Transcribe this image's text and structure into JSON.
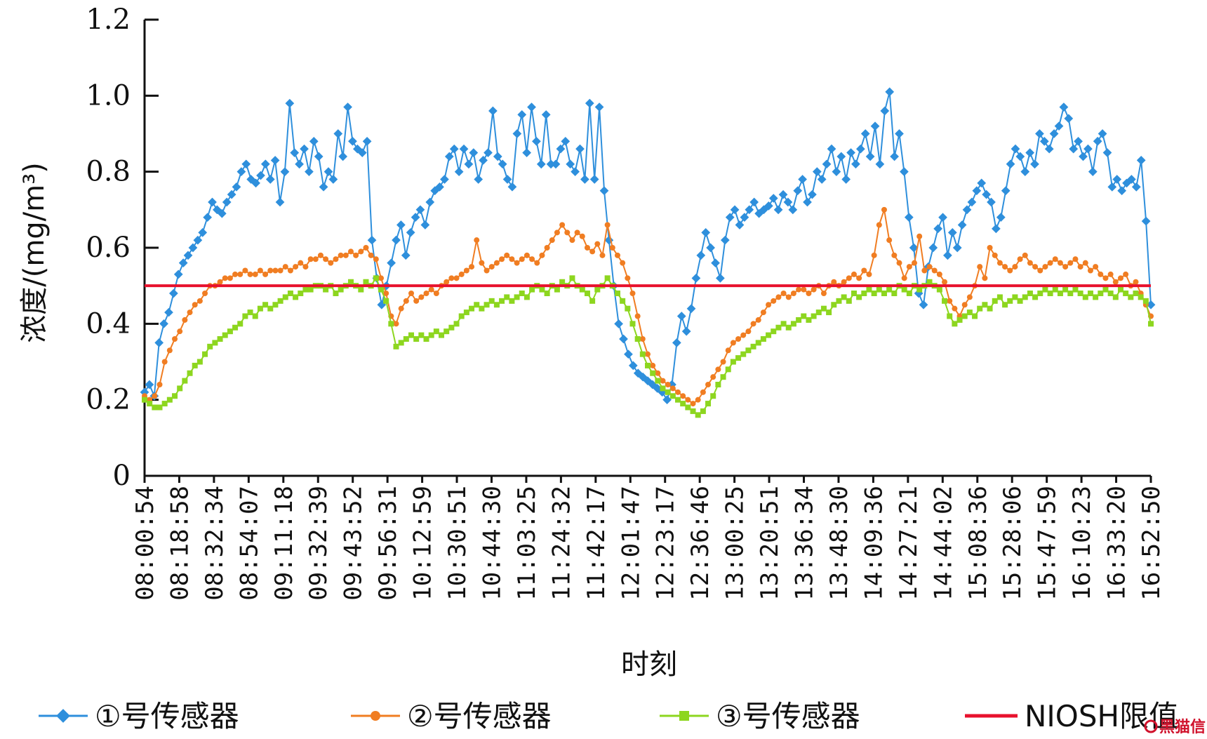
{
  "chart_data": {
    "type": "line",
    "xlabel": "时刻",
    "ylabel": "浓度/(mg/m³)",
    "ylim": [
      0,
      1.2
    ],
    "yticks": [
      "0",
      "0.2",
      "0.4",
      "0.6",
      "0.8",
      "1.0",
      "1.2"
    ],
    "x_tick_labels": [
      "08:00:54",
      "08:18:58",
      "08:32:34",
      "08:54:07",
      "09:11:18",
      "09:32:39",
      "09:43:52",
      "09:56:31",
      "10:12:59",
      "10:30:51",
      "10:44:30",
      "11:03:25",
      "11:24:32",
      "11:42:17",
      "12:01:47",
      "12:23:17",
      "12:36:46",
      "13:00:25",
      "13:20:51",
      "13:36:34",
      "13:48:30",
      "14:09:36",
      "14:27:21",
      "14:44:02",
      "15:08:36",
      "15:28:06",
      "15:47:59",
      "16:10:23",
      "16:33:20",
      "16:52:50"
    ],
    "grid": false,
    "legend_position": "bottom",
    "threshold": {
      "name": "NIOSH限值",
      "value": 0.5,
      "color": "#e8112d"
    },
    "series": [
      {
        "name": "①号传感器",
        "color": "#2e8fdc",
        "marker": "diamond",
        "values": [
          0.22,
          0.24,
          0.21,
          0.35,
          0.4,
          0.43,
          0.48,
          0.53,
          0.56,
          0.58,
          0.6,
          0.62,
          0.64,
          0.68,
          0.72,
          0.7,
          0.69,
          0.72,
          0.74,
          0.76,
          0.8,
          0.82,
          0.78,
          0.77,
          0.79,
          0.82,
          0.78,
          0.83,
          0.72,
          0.8,
          0.98,
          0.85,
          0.82,
          0.86,
          0.8,
          0.88,
          0.84,
          0.76,
          0.8,
          0.78,
          0.9,
          0.84,
          0.97,
          0.88,
          0.86,
          0.85,
          0.88,
          0.62,
          0.52,
          0.45,
          0.5,
          0.56,
          0.62,
          0.66,
          0.58,
          0.64,
          0.68,
          0.7,
          0.66,
          0.72,
          0.75,
          0.76,
          0.78,
          0.84,
          0.86,
          0.8,
          0.86,
          0.82,
          0.85,
          0.78,
          0.83,
          0.85,
          0.96,
          0.84,
          0.82,
          0.78,
          0.76,
          0.9,
          0.95,
          0.85,
          0.97,
          0.88,
          0.82,
          0.95,
          0.82,
          0.82,
          0.86,
          0.88,
          0.82,
          0.8,
          0.86,
          0.78,
          0.98,
          0.78,
          0.97,
          0.75,
          0.62,
          0.5,
          0.4,
          0.36,
          0.32,
          0.29,
          0.27,
          0.26,
          0.25,
          0.24,
          0.23,
          0.22,
          0.2,
          0.24,
          0.35,
          0.42,
          0.38,
          0.44,
          0.52,
          0.58,
          0.64,
          0.6,
          0.56,
          0.52,
          0.62,
          0.68,
          0.7,
          0.66,
          0.68,
          0.7,
          0.72,
          0.69,
          0.7,
          0.71,
          0.73,
          0.7,
          0.74,
          0.72,
          0.7,
          0.75,
          0.78,
          0.72,
          0.74,
          0.8,
          0.78,
          0.82,
          0.86,
          0.8,
          0.84,
          0.78,
          0.85,
          0.82,
          0.86,
          0.9,
          0.84,
          0.92,
          0.82,
          0.96,
          1.01,
          0.84,
          0.9,
          0.8,
          0.68,
          0.6,
          0.48,
          0.45,
          0.55,
          0.6,
          0.65,
          0.68,
          0.58,
          0.64,
          0.6,
          0.66,
          0.7,
          0.72,
          0.75,
          0.77,
          0.74,
          0.72,
          0.65,
          0.68,
          0.75,
          0.82,
          0.86,
          0.84,
          0.8,
          0.85,
          0.82,
          0.9,
          0.88,
          0.86,
          0.9,
          0.92,
          0.97,
          0.94,
          0.86,
          0.88,
          0.84,
          0.86,
          0.8,
          0.88,
          0.9,
          0.85,
          0.76,
          0.78,
          0.75,
          0.77,
          0.78,
          0.76,
          0.83,
          0.67,
          0.45
        ]
      },
      {
        "name": "②号传感器",
        "color": "#f07d22",
        "marker": "circle",
        "values": [
          0.21,
          0.2,
          0.21,
          0.24,
          0.3,
          0.33,
          0.36,
          0.38,
          0.41,
          0.43,
          0.45,
          0.46,
          0.48,
          0.5,
          0.5,
          0.51,
          0.52,
          0.52,
          0.53,
          0.53,
          0.54,
          0.53,
          0.53,
          0.54,
          0.53,
          0.54,
          0.54,
          0.54,
          0.55,
          0.54,
          0.55,
          0.56,
          0.55,
          0.57,
          0.57,
          0.58,
          0.57,
          0.56,
          0.57,
          0.58,
          0.58,
          0.59,
          0.58,
          0.59,
          0.6,
          0.58,
          0.57,
          0.52,
          0.48,
          0.42,
          0.4,
          0.44,
          0.46,
          0.48,
          0.46,
          0.47,
          0.48,
          0.49,
          0.48,
          0.5,
          0.51,
          0.52,
          0.52,
          0.53,
          0.54,
          0.55,
          0.62,
          0.56,
          0.54,
          0.55,
          0.56,
          0.57,
          0.58,
          0.57,
          0.56,
          0.57,
          0.58,
          0.57,
          0.56,
          0.58,
          0.6,
          0.62,
          0.64,
          0.66,
          0.64,
          0.62,
          0.64,
          0.63,
          0.6,
          0.59,
          0.61,
          0.58,
          0.66,
          0.6,
          0.58,
          0.56,
          0.52,
          0.48,
          0.42,
          0.36,
          0.32,
          0.29,
          0.27,
          0.25,
          0.24,
          0.23,
          0.22,
          0.21,
          0.2,
          0.19,
          0.2,
          0.22,
          0.24,
          0.26,
          0.28,
          0.3,
          0.33,
          0.35,
          0.36,
          0.37,
          0.38,
          0.4,
          0.41,
          0.43,
          0.45,
          0.46,
          0.47,
          0.48,
          0.47,
          0.48,
          0.49,
          0.49,
          0.48,
          0.49,
          0.5,
          0.48,
          0.5,
          0.51,
          0.5,
          0.51,
          0.52,
          0.53,
          0.52,
          0.54,
          0.53,
          0.58,
          0.66,
          0.7,
          0.62,
          0.58,
          0.56,
          0.52,
          0.55,
          0.56,
          0.63,
          0.54,
          0.55,
          0.54,
          0.53,
          0.51,
          0.46,
          0.44,
          0.42,
          0.45,
          0.47,
          0.5,
          0.55,
          0.52,
          0.6,
          0.58,
          0.56,
          0.55,
          0.54,
          0.55,
          0.57,
          0.58,
          0.56,
          0.55,
          0.54,
          0.55,
          0.56,
          0.57,
          0.56,
          0.55,
          0.56,
          0.57,
          0.55,
          0.56,
          0.54,
          0.55,
          0.53,
          0.52,
          0.53,
          0.51,
          0.52,
          0.53,
          0.5,
          0.51,
          0.48,
          0.45,
          0.42
        ]
      },
      {
        "name": "③号传感器",
        "color": "#8dd61f",
        "marker": "square",
        "values": [
          0.2,
          0.19,
          0.18,
          0.18,
          0.19,
          0.2,
          0.21,
          0.23,
          0.25,
          0.27,
          0.29,
          0.3,
          0.32,
          0.34,
          0.35,
          0.36,
          0.37,
          0.38,
          0.39,
          0.4,
          0.42,
          0.43,
          0.42,
          0.44,
          0.45,
          0.44,
          0.45,
          0.46,
          0.47,
          0.48,
          0.47,
          0.48,
          0.49,
          0.49,
          0.5,
          0.5,
          0.49,
          0.5,
          0.48,
          0.49,
          0.5,
          0.51,
          0.5,
          0.49,
          0.51,
          0.5,
          0.52,
          0.49,
          0.46,
          0.4,
          0.34,
          0.35,
          0.36,
          0.37,
          0.36,
          0.37,
          0.36,
          0.37,
          0.38,
          0.37,
          0.38,
          0.39,
          0.4,
          0.42,
          0.43,
          0.44,
          0.45,
          0.44,
          0.45,
          0.46,
          0.45,
          0.46,
          0.47,
          0.46,
          0.47,
          0.48,
          0.47,
          0.49,
          0.5,
          0.49,
          0.48,
          0.5,
          0.49,
          0.51,
          0.5,
          0.52,
          0.5,
          0.49,
          0.48,
          0.46,
          0.49,
          0.5,
          0.52,
          0.5,
          0.48,
          0.46,
          0.44,
          0.4,
          0.36,
          0.32,
          0.29,
          0.27,
          0.25,
          0.23,
          0.22,
          0.21,
          0.2,
          0.19,
          0.18,
          0.17,
          0.16,
          0.17,
          0.19,
          0.21,
          0.24,
          0.26,
          0.28,
          0.3,
          0.31,
          0.32,
          0.33,
          0.34,
          0.35,
          0.36,
          0.37,
          0.38,
          0.39,
          0.4,
          0.39,
          0.4,
          0.41,
          0.42,
          0.41,
          0.42,
          0.43,
          0.44,
          0.43,
          0.45,
          0.46,
          0.47,
          0.46,
          0.48,
          0.47,
          0.48,
          0.49,
          0.48,
          0.49,
          0.48,
          0.49,
          0.48,
          0.5,
          0.49,
          0.48,
          0.5,
          0.49,
          0.5,
          0.51,
          0.5,
          0.49,
          0.46,
          0.42,
          0.4,
          0.41,
          0.42,
          0.43,
          0.42,
          0.44,
          0.45,
          0.44,
          0.46,
          0.47,
          0.45,
          0.46,
          0.47,
          0.46,
          0.47,
          0.48,
          0.47,
          0.48,
          0.49,
          0.48,
          0.49,
          0.48,
          0.49,
          0.48,
          0.49,
          0.48,
          0.47,
          0.48,
          0.47,
          0.48,
          0.49,
          0.48,
          0.47,
          0.49,
          0.48,
          0.47,
          0.48,
          0.47,
          0.46,
          0.4
        ]
      }
    ]
  },
  "watermark": {
    "text": "黑猫信"
  }
}
